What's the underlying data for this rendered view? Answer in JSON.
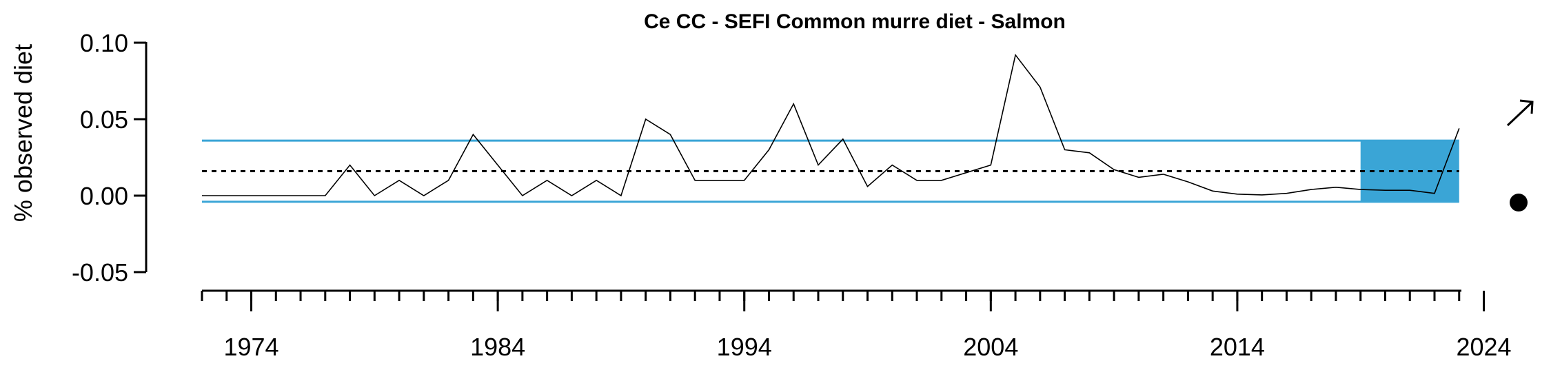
{
  "chart_data": {
    "type": "line",
    "title": "Ce CC - SEFI Common murre diet - Salmon",
    "xlabel": "",
    "ylabel": "% observed diet",
    "xlim": [
      1971,
      2025
    ],
    "ylim": [
      -0.05,
      0.1
    ],
    "x_ticks": [
      "1974",
      "1984",
      "1994",
      "2004",
      "2014",
      "2024"
    ],
    "y_ticks": [
      "-0.05",
      "0.00",
      "0.05",
      "0.10"
    ],
    "mean": 0.016,
    "sd_upper": 0.036,
    "sd_lower": -0.004,
    "shaded_range": [
      2019,
      2023
    ],
    "grid": false,
    "colors": {
      "band_line": "#3aa5d6",
      "shade": "#3aa5d6",
      "series": "#000000",
      "mean_line": "#000000"
    },
    "series": [
      {
        "x": [
          1972,
          1973,
          1974,
          1975,
          1976,
          1977,
          1978,
          1979,
          1980,
          1981,
          1982,
          1983,
          1984,
          1985,
          1986,
          1987,
          1988,
          1989,
          1990,
          1991,
          1992,
          1993,
          1994,
          1995,
          1996,
          1997,
          1998,
          1999,
          2000,
          2001,
          2002,
          2003,
          2004,
          2005,
          2006,
          2007,
          2008,
          2009,
          2010,
          2011,
          2012,
          2013,
          2014,
          2015,
          2016,
          2017,
          2018,
          2019,
          2020,
          2021,
          2022,
          2023
        ],
        "values": [
          0,
          0,
          0,
          0,
          0,
          0,
          0.02,
          0,
          0.01,
          0,
          0.01,
          0.04,
          0.02,
          0,
          0.01,
          0,
          0.01,
          0,
          0.05,
          0.04,
          0.01,
          0.01,
          0.01,
          0.03,
          0.06,
          0.02,
          0.037,
          0.006,
          0.02,
          0.01,
          0.01,
          0.015,
          0.02,
          0.092,
          0.071,
          0.03,
          0.028,
          0.017,
          0.012,
          0.014,
          0.009,
          0.003,
          0.001,
          0.0005,
          0.0015,
          0.004,
          0.0055,
          0.004,
          0.0035,
          0.0035,
          0.0015,
          0.044
        ]
      }
    ]
  },
  "indicators": {
    "trend_icon": "arrow-up-right-icon",
    "mean_icon": "filled-circle-icon"
  }
}
